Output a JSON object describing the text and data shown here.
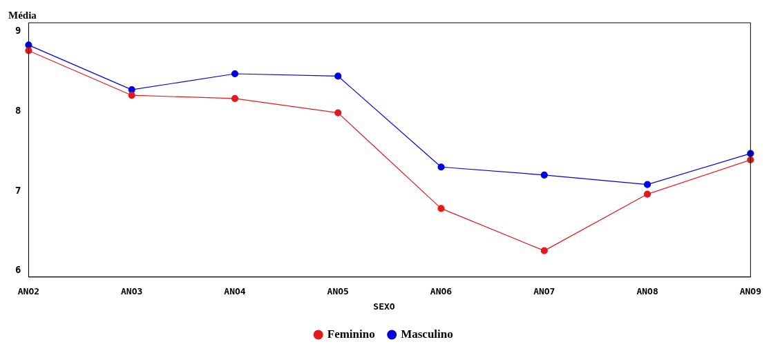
{
  "chart_data": {
    "type": "line",
    "ylabel": "Média",
    "legend_title": "SEXO",
    "legend": "bottom",
    "marker": "circle",
    "grid": false,
    "categories": [
      "ANO2",
      "ANO3",
      "ANO4",
      "ANO5",
      "ANO6",
      "ANO7",
      "ANO8",
      "ANO9"
    ],
    "ylim": [
      5.92,
      9.11
    ],
    "yticks": [
      6,
      7,
      8,
      9
    ],
    "series": [
      {
        "name": "Feminino",
        "color": "#e31a1c",
        "values": [
          8.76,
          8.2,
          8.16,
          7.98,
          6.78,
          6.25,
          6.96,
          7.39
        ]
      },
      {
        "name": "Masculino",
        "color": "#0000e0",
        "values": [
          8.83,
          8.27,
          8.47,
          8.44,
          7.3,
          7.2,
          7.08,
          7.47
        ]
      }
    ]
  }
}
